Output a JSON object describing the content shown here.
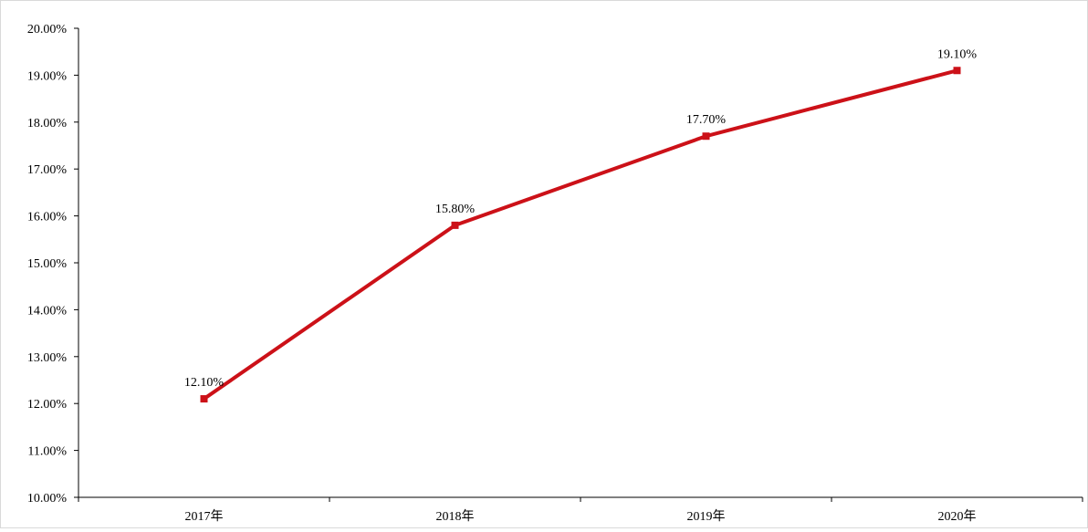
{
  "chart_data": {
    "type": "line",
    "title": "",
    "xlabel": "",
    "ylabel": "",
    "categories": [
      "2017年",
      "2018年",
      "2019年",
      "2020年"
    ],
    "series": [
      {
        "values": [
          12.1,
          15.8,
          17.7,
          19.1
        ],
        "data_labels": [
          "12.10%",
          "15.80%",
          "17.70%",
          "19.10%"
        ],
        "color": "#cc1118",
        "marker": "square"
      }
    ],
    "ylim": [
      10,
      20
    ],
    "y_ticks": [
      10,
      11,
      12,
      13,
      14,
      15,
      16,
      17,
      18,
      19,
      20
    ],
    "y_tick_labels": [
      "10.00%",
      "11.00%",
      "12.00%",
      "13.00%",
      "14.00%",
      "15.00%",
      "16.00%",
      "17.00%",
      "18.00%",
      "19.00%",
      "20.00%"
    ],
    "grid": false,
    "legend": "none"
  }
}
